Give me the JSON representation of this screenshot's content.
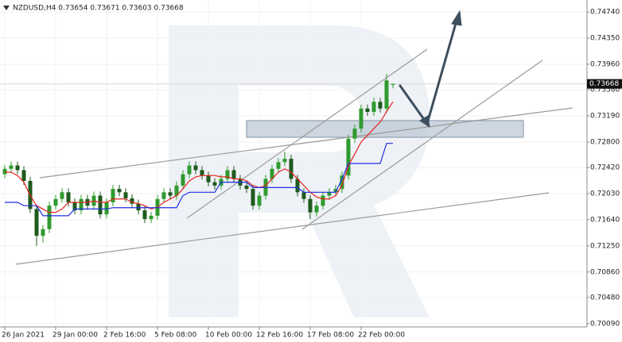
{
  "chart_data": {
    "type": "candlestick",
    "title": "NZDUSD,H4  0.73654 0.73671 0.73603 0.73668",
    "categories": [
      "26 Jan 2021",
      null,
      null,
      null,
      null,
      null,
      null,
      null,
      "29 Jan 00:00",
      null,
      null,
      null,
      null,
      null,
      null,
      null,
      "2 Feb 16:00",
      null,
      null,
      null,
      null,
      null,
      null,
      null,
      "5 Feb 08:00",
      null,
      null,
      null,
      null,
      null,
      null,
      null,
      "10 Feb 00:00",
      null,
      null,
      null,
      null,
      null,
      null,
      null,
      "12 Feb 16:00",
      null,
      null,
      null,
      null,
      null,
      null,
      null,
      "17 Feb 08:00",
      null,
      null,
      null,
      null,
      null,
      null,
      null,
      "22 Feb 00:00",
      null,
      null,
      null,
      null,
      null
    ],
    "open": [
      0.7232,
      0.724,
      0.7245,
      0.7238,
      0.7222,
      0.718,
      0.714,
      0.715,
      0.7185,
      0.7195,
      0.7205,
      0.719,
      0.7178,
      0.7195,
      0.7185,
      0.72,
      0.7172,
      0.719,
      0.721,
      0.7205,
      0.7196,
      0.7188,
      0.7178,
      0.7165,
      0.717,
      0.7195,
      0.7205,
      0.72,
      0.7215,
      0.7232,
      0.7245,
      0.7238,
      0.723,
      0.722,
      0.7215,
      0.7225,
      0.7238,
      0.7225,
      0.7215,
      0.721,
      0.7185,
      0.72,
      0.7225,
      0.724,
      0.725,
      0.7255,
      0.7225,
      0.7205,
      0.7195,
      0.7175,
      0.7185,
      0.72,
      0.7205,
      0.721,
      0.723,
      0.7285,
      0.73,
      0.733,
      0.7325,
      0.734,
      0.733,
      0.73654
    ],
    "high": [
      0.7246,
      0.7251,
      0.7251,
      0.7244,
      0.7228,
      0.7186,
      0.7156,
      0.7191,
      0.7201,
      0.7211,
      0.7211,
      0.7196,
      0.7201,
      0.7201,
      0.7206,
      0.7206,
      0.7196,
      0.7216,
      0.7216,
      0.7211,
      0.7202,
      0.7194,
      0.7184,
      0.7176,
      0.7201,
      0.7211,
      0.7211,
      0.7221,
      0.7238,
      0.7251,
      0.7251,
      0.7244,
      0.7236,
      0.7226,
      0.7231,
      0.7244,
      0.7244,
      0.7231,
      0.7221,
      0.7216,
      0.7206,
      0.7231,
      0.7246,
      0.7256,
      0.7266,
      0.7261,
      0.7231,
      0.7211,
      0.7201,
      0.7191,
      0.7206,
      0.7211,
      0.7216,
      0.7236,
      0.7291,
      0.7306,
      0.7336,
      0.7336,
      0.7346,
      0.7346,
      0.7382,
      0.73671
    ],
    "low": [
      0.7226,
      0.7234,
      0.7232,
      0.7216,
      0.7174,
      0.7125,
      0.713,
      0.7144,
      0.7179,
      0.7189,
      0.7184,
      0.7172,
      0.7172,
      0.7179,
      0.7179,
      0.7166,
      0.7166,
      0.7184,
      0.7199,
      0.719,
      0.7182,
      0.7172,
      0.7159,
      0.7159,
      0.7164,
      0.7189,
      0.7194,
      0.7194,
      0.7209,
      0.7226,
      0.7232,
      0.7224,
      0.7214,
      0.7209,
      0.7209,
      0.7219,
      0.7219,
      0.7209,
      0.7204,
      0.7179,
      0.7179,
      0.7194,
      0.7219,
      0.7234,
      0.7244,
      0.7219,
      0.7199,
      0.7189,
      0.7165,
      0.7169,
      0.7179,
      0.7194,
      0.7199,
      0.7204,
      0.7224,
      0.7279,
      0.7294,
      0.7319,
      0.7319,
      0.7324,
      0.7324,
      0.73603
    ],
    "close": [
      0.724,
      0.7245,
      0.7238,
      0.7222,
      0.718,
      0.714,
      0.715,
      0.7185,
      0.7195,
      0.7205,
      0.719,
      0.7178,
      0.7195,
      0.7185,
      0.72,
      0.7172,
      0.719,
      0.721,
      0.7205,
      0.7196,
      0.7188,
      0.7178,
      0.7165,
      0.717,
      0.7195,
      0.7205,
      0.72,
      0.7215,
      0.7232,
      0.7245,
      0.7238,
      0.723,
      0.722,
      0.7215,
      0.7225,
      0.7238,
      0.7225,
      0.7215,
      0.721,
      0.7185,
      0.72,
      0.7225,
      0.724,
      0.725,
      0.7255,
      0.7225,
      0.7205,
      0.7195,
      0.7175,
      0.7185,
      0.72,
      0.7205,
      0.721,
      0.723,
      0.7285,
      0.73,
      0.733,
      0.7325,
      0.734,
      0.733,
      0.7372,
      0.73668
    ],
    "up_color": "#2f9a2f",
    "down_color": "#1e5a1e",
    "lines": [
      {
        "color": "#e8231f",
        "values": [
          0.7235,
          0.7235,
          0.723,
          0.722,
          0.72,
          0.7185,
          0.718,
          0.7175,
          0.7175,
          0.718,
          0.719,
          0.719,
          0.719,
          0.719,
          0.7192,
          0.719,
          0.719,
          0.7195,
          0.7195,
          0.7195,
          0.719,
          0.7188,
          0.7185,
          0.718,
          0.7183,
          0.719,
          0.7195,
          0.72,
          0.721,
          0.7222,
          0.7228,
          0.723,
          0.723,
          0.723,
          0.7228,
          0.7228,
          0.7225,
          0.7225,
          0.7222,
          0.7215,
          0.7212,
          0.7215,
          0.7225,
          0.7235,
          0.724,
          0.7235,
          0.7225,
          0.7215,
          0.7205,
          0.7198,
          0.7195,
          0.7195,
          0.72,
          0.7215,
          0.7245,
          0.7262,
          0.728,
          0.729,
          0.73,
          0.731,
          0.7325,
          0.734
        ]
      },
      {
        "color": "#1f2fe0",
        "values": [
          0.719,
          0.719,
          0.719,
          0.7185,
          0.7185,
          0.7185,
          0.717,
          0.717,
          0.717,
          0.717,
          0.717,
          0.718,
          0.718,
          0.718,
          0.718,
          0.718,
          0.718,
          0.7182,
          0.7182,
          0.7182,
          0.7182,
          0.7182,
          0.7182,
          0.7182,
          0.7182,
          0.7182,
          0.7182,
          0.7182,
          0.72,
          0.7205,
          0.7205,
          0.7205,
          0.7205,
          0.7205,
          0.722,
          0.722,
          0.722,
          0.722,
          0.722,
          0.7212,
          0.7212,
          0.7212,
          0.7212,
          0.7212,
          0.7212,
          0.7212,
          0.7212,
          0.7205,
          0.7205,
          0.7205,
          0.7205,
          0.7205,
          0.7205,
          0.7225,
          0.7248,
          0.7248,
          0.7248,
          0.7248,
          0.7248,
          0.7248,
          0.7278,
          0.7278
        ]
      }
    ],
    "current_price": 0.73668,
    "ylim": [
      0.7004,
      0.7492
    ],
    "yticks": [
      {
        "value": 0.7474,
        "label": "0.74740"
      },
      {
        "value": 0.7435,
        "label": "0.74350"
      },
      {
        "value": 0.7396,
        "label": "0.73960"
      },
      {
        "value": 0.7358,
        "label": "0.73580"
      },
      {
        "value": 0.7319,
        "label": "0.73190"
      },
      {
        "value": 0.728,
        "label": "0.72800"
      },
      {
        "value": 0.7242,
        "label": "0.72420"
      },
      {
        "value": 0.7203,
        "label": "0.72030"
      },
      {
        "value": 0.7164,
        "label": "0.71640"
      },
      {
        "value": 0.7125,
        "label": "0.71250"
      },
      {
        "value": 0.7086,
        "label": "0.70860"
      },
      {
        "value": 0.7048,
        "label": "0.70480"
      },
      {
        "value": 0.7009,
        "label": "0.70090"
      }
    ],
    "grid": true
  }
}
